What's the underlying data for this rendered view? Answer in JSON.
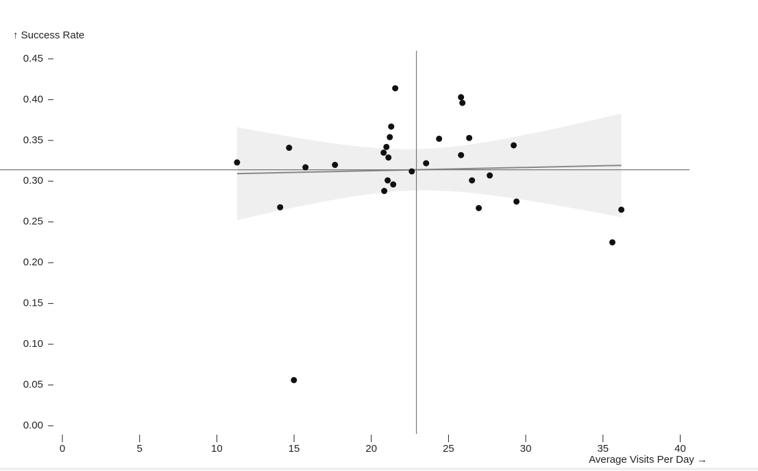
{
  "chart_data": {
    "type": "scatter",
    "x_label": "Average Visits Per Day →",
    "y_label": "↑ Success Rate",
    "x": [
      11.31,
      14.1,
      14.68,
      14.99,
      15.74,
      17.65,
      20.84,
      20.8,
      20.98,
      21.11,
      21.2,
      21.29,
      21.06,
      21.42,
      21.55,
      22.62,
      23.55,
      24.39,
      25.81,
      25.9,
      25.81,
      26.34,
      26.52,
      26.96,
      27.67,
      29.22,
      29.4,
      35.61,
      36.19
    ],
    "values": [
      0.323,
      0.268,
      0.341,
      0.056,
      0.317,
      0.32,
      0.288,
      0.335,
      0.342,
      0.329,
      0.354,
      0.367,
      0.301,
      0.296,
      0.414,
      0.312,
      0.322,
      0.352,
      0.403,
      0.396,
      0.332,
      0.353,
      0.301,
      0.267,
      0.307,
      0.344,
      0.275,
      0.225,
      0.265
    ],
    "color": "#111111",
    "xlim": [
      0,
      40.6
    ],
    "ylim": [
      0,
      0.46
    ],
    "xticks": [
      0,
      5,
      10,
      15,
      20,
      25,
      30,
      35,
      40
    ],
    "yticks": [
      {
        "value": 0,
        "label": "0.00"
      },
      0.05,
      {
        "value": 0.1,
        "label": "0.10"
      },
      0.15,
      {
        "value": 0.2,
        "label": "0.20"
      },
      0.25,
      {
        "value": 0.3,
        "label": "0.30"
      },
      0.35,
      {
        "value": 0.4,
        "label": "0.40"
      },
      0.45
    ],
    "regression": true,
    "mean_rules": true
  }
}
